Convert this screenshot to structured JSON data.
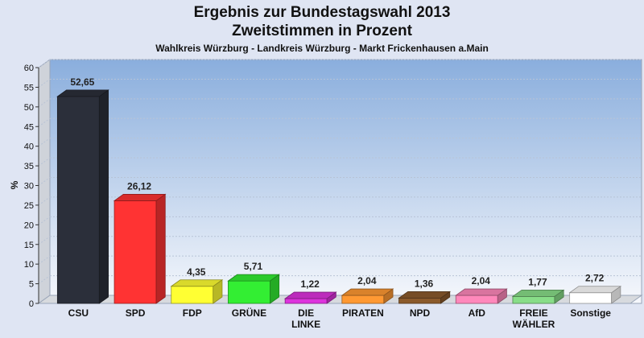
{
  "chart_data": {
    "type": "bar",
    "title_line1": "Ergebnis zur Bundestagswahl 2013",
    "title_line2": "Zweitstimmen in Prozent",
    "subtitle": "Wahlkreis Würzburg - Landkreis Würzburg - Markt Frickenhausen a.Main",
    "ylabel": "%",
    "xlabel": "",
    "ylim": [
      0,
      60
    ],
    "yticks": [
      0,
      5,
      10,
      15,
      20,
      25,
      30,
      35,
      40,
      45,
      50,
      55,
      60
    ],
    "grid": true,
    "categories": [
      [
        "CSU"
      ],
      [
        "SPD"
      ],
      [
        "FDP"
      ],
      [
        "GRÜNE"
      ],
      [
        "DIE",
        "LINKE"
      ],
      [
        "PIRATEN"
      ],
      [
        "NPD"
      ],
      [
        "AfD"
      ],
      [
        "FREIE",
        "WÄHLER"
      ],
      [
        "Sonstige"
      ]
    ],
    "values": [
      52.65,
      26.12,
      4.35,
      5.71,
      1.22,
      2.04,
      1.36,
      2.04,
      1.77,
      2.72
    ],
    "value_labels": [
      "52,65",
      "26,12",
      "4,35",
      "5,71",
      "1,22",
      "2,04",
      "1,36",
      "2,04",
      "1,77",
      "2,72"
    ],
    "colors": [
      "#2b2f3a",
      "#ff3333",
      "#ffff33",
      "#33ee33",
      "#dd33dd",
      "#ff9933",
      "#8b5a2b",
      "#ff88bb",
      "#88dd88",
      "#ffffff"
    ]
  }
}
